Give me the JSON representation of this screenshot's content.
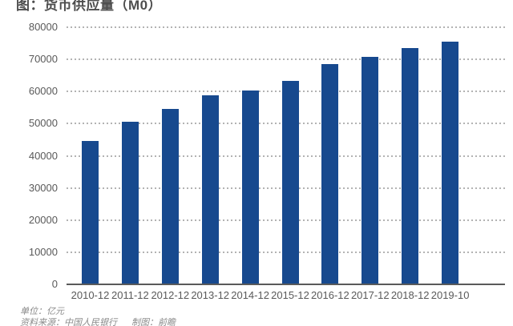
{
  "title": "图：货币供应量（M0）",
  "footer": {
    "unit_note": "单位：亿元",
    "source_note": "资料来源：中国人民银行",
    "credit_note": "制图：前瞻"
  },
  "colors": {
    "bar": "#17498e",
    "gridline": "#b3b3b3",
    "axis_line": "#5a5a5a",
    "axis_label": "#595959",
    "title_text": "#4d4d4d",
    "footer_text": "#8a8a8a",
    "background": "#ffffff"
  },
  "chart_data": {
    "type": "bar",
    "title": "图：货币供应量（M0）",
    "unit": "亿元",
    "categories": [
      "2010-12",
      "2011-12",
      "2012-12",
      "2013-12",
      "2014-12",
      "2015-12",
      "2016-12",
      "2017-12",
      "2018-12",
      "2019-10"
    ],
    "values": [
      44700,
      50700,
      54600,
      58900,
      60200,
      63400,
      68600,
      70800,
      73500,
      75600
    ],
    "xlabel": "",
    "ylabel": "",
    "ylim": [
      0,
      80000
    ],
    "yticks": [
      0,
      10000,
      20000,
      30000,
      40000,
      50000,
      60000,
      70000,
      80000
    ],
    "grid": "dotted-horizontal",
    "legend": "none"
  }
}
